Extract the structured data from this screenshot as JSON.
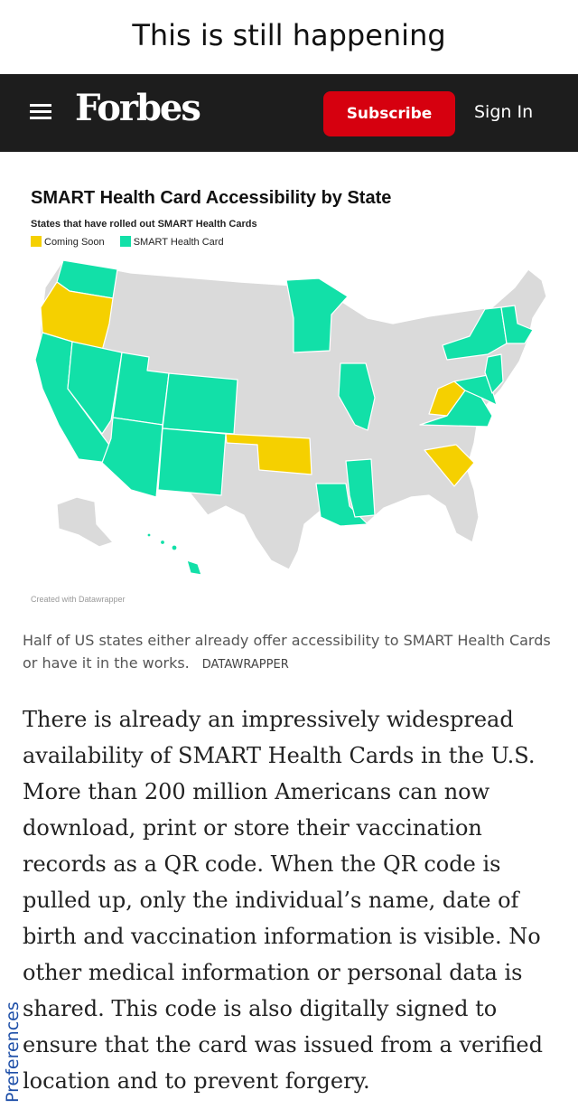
{
  "meme": {
    "caption": "This is still happening"
  },
  "header": {
    "logo": "Forbes",
    "subscribe_label": "Subscribe",
    "signin_label": "Sign In",
    "menu_icon": "hamburger-menu-icon"
  },
  "colors": {
    "header_bg": "#1d1d1d",
    "subscribe_red": "#d6000f",
    "coming_soon": "#f5d000",
    "smart_card": "#12e0a8",
    "no_data": "#dadada"
  },
  "chart": {
    "title": "SMART Health Card Accessibility by State",
    "subtitle": "States that have rolled out SMART Health Cards",
    "legend": [
      {
        "label": "Coming Soon",
        "color": "#f5d000"
      },
      {
        "label": "SMART Health Card",
        "color": "#12e0a8"
      }
    ],
    "credit": "Created with Datawrapper"
  },
  "chart_data": {
    "type": "map",
    "legend_placement": "top-left",
    "categories": [
      "Coming Soon",
      "SMART Health Card"
    ],
    "states": {
      "Coming Soon": [
        "Oregon",
        "Oklahoma",
        "West Virginia",
        "South Carolina"
      ],
      "SMART Health Card": [
        "Washington",
        "California",
        "Nevada",
        "Utah",
        "Arizona",
        "Colorado",
        "New Mexico",
        "Minnesota",
        "Illinois",
        "Louisiana",
        "Mississippi",
        "Virginia",
        "Maryland",
        "Delaware",
        "New Jersey",
        "New York",
        "Connecticut",
        "Rhode Island",
        "Massachusetts",
        "Vermont",
        "Hawaii"
      ]
    }
  },
  "photo_caption": {
    "text": "Half of US states either already offer accessibility to SMART Health Cards or have it in the works.",
    "credit": "DATAWRAPPER"
  },
  "article": {
    "paragraph": "There is already an impressively widespread availability of SMART Health Cards in the U.S. More than 200 million Americans can now download, print or store their vaccination records as a QR code. When the QR code is pulled up, only the individual’s name, date of birth and vaccination information is visible. No other medical information or personal data is shared. This code is also digitally signed to ensure that the card was issued from a verified location and to prevent forgery."
  },
  "preferences_label": "Preferences"
}
